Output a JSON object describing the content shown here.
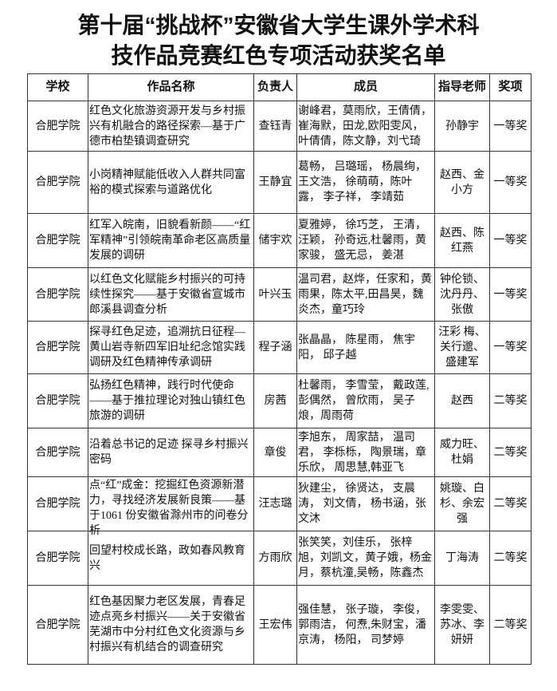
{
  "title": {
    "line1": "第十届“挑战杯”安徽省大学生课外学术科",
    "line2": "技作品竞赛红色专项活动获奖名单"
  },
  "table": {
    "headers": [
      "学校",
      "作品名称",
      "负责人",
      "成员",
      "指导老师",
      "奖项"
    ],
    "rows": [
      {
        "school": "合肥学院",
        "work": "红色文化旅游资源开发与乡村振兴有机融合的路径探索—基于广德市柏垫镇调查研究",
        "leader": "查钰青",
        "members": "谢峰君，莫雨欣，王倩倩，崔海默，田龙,欧阳雯风，叶倩倩，陈文静，刘弋琦",
        "advisor": "孙静宇",
        "award": "一等奖"
      },
      {
        "school": "合肥学院",
        "work": "小岗精神赋能低收入人群共同富裕的模式探索与道路优化",
        "leader": "王静宜",
        "members": "葛畅， 吕璐瑶， 杨晨绚， 王文浩， 徐萌萌，陈叶露， 李子祥， 李靖茹",
        "advisor": "赵西、金小方",
        "award": "一等奖"
      },
      {
        "school": "合肥学院",
        "work": "红军入皖南，旧貌看新颜——“红军精神”引领皖南革命老区高质量发展的调研",
        "leader": "储宇欢",
        "members": "夏雅婷， 徐巧芝， 王清，汪颖， 孙奇远,杜馨雨，黄家骏， 盛无忌， 姜湛",
        "advisor": "赵西、陈红燕",
        "award": "一等奖"
      },
      {
        "school": "合肥学院",
        "work": "以红色文化赋能乡村振兴的可持续性探究——基于安徽省宣城市郎溪县调查分析",
        "leader": "叶兴玉",
        "members": "温司君，赵烨，任家和，黄雨果，陈太平,田昌昊，魏炎杰，童巧玲",
        "advisor": "钟伦锁、沈丹丹、张傲",
        "award": "一等奖"
      },
      {
        "school": "合肥学院",
        "work": "探寻红色足迹，追溯抗日征程—黄山岩寺新四军旧址纪念馆实践调研及红色精神传承调研",
        "leader": "程子涵",
        "members": "张晶晶， 陈星雨， 焦宇阳， 邱子越",
        "advisor": "汪彩 梅、关行邈、盛建军",
        "award": "一等奖"
      },
      {
        "school": "合肥学院",
        "work": "弘扬红色精神，践行时代使命——基于推拉理论对独山镇红色旅游的调研",
        "leader": "房茜",
        "members": "杜馨雨， 李雪莹， 戴政莲,彭偶然， 曾欣雨， 吴子烺，周雨荷",
        "advisor": "赵西",
        "award": "二等奖"
      },
      {
        "school": "合肥学院",
        "work": "沿着总书记的足迹 探寻乡村振兴密码",
        "leader": "章俊",
        "members": "李旭东， 周家喆， 温司君， 李栎栎， 陶景瑞，章乐欣， 周思慧,韩亚飞",
        "advisor": "威力旺、杜娟",
        "award": "二等奖"
      },
      {
        "school": "合肥学院",
        "work": "点“红”成金：挖掘红色资源新潜力，寻找经济发展新良策——基于1061 份安徽省滁州市的问卷分析",
        "leader": "汪志璐",
        "members": "狄建尘， 徐贤达， 支晨涛， 刘文倩， 杨书涵，张文沐",
        "advisor": "姚璇、白杉、余宏强",
        "award": "二等奖"
      },
      {
        "school": "合肥学院",
        "work": "回望村校成长路，政如春风教育兴",
        "leader": "方雨欣",
        "members": "张笑笑，刘佳乐， 张梓旭，刘凯文，黄子娥，杨金月，蔡杭潼,吴畅，陈鑫杰",
        "advisor": "丁海涛",
        "award": "二等奖"
      },
      {
        "school": "合肥学院",
        "work": "红色基因聚力老区发展，青春足迹点亮乡村振兴——关于安徽省芜湖市中分村红色文化资源与乡村振兴有机结合的调查研究",
        "leader": "王宏伟",
        "members": "强佳慧， 张子璇， 李俊，郭雨洁， 何焘,朱财宝，潘京涛， 杨阳， 司梦婷",
        "advisor": "李雯雯、苏冰、李妍妍",
        "award": "二等奖"
      }
    ]
  }
}
